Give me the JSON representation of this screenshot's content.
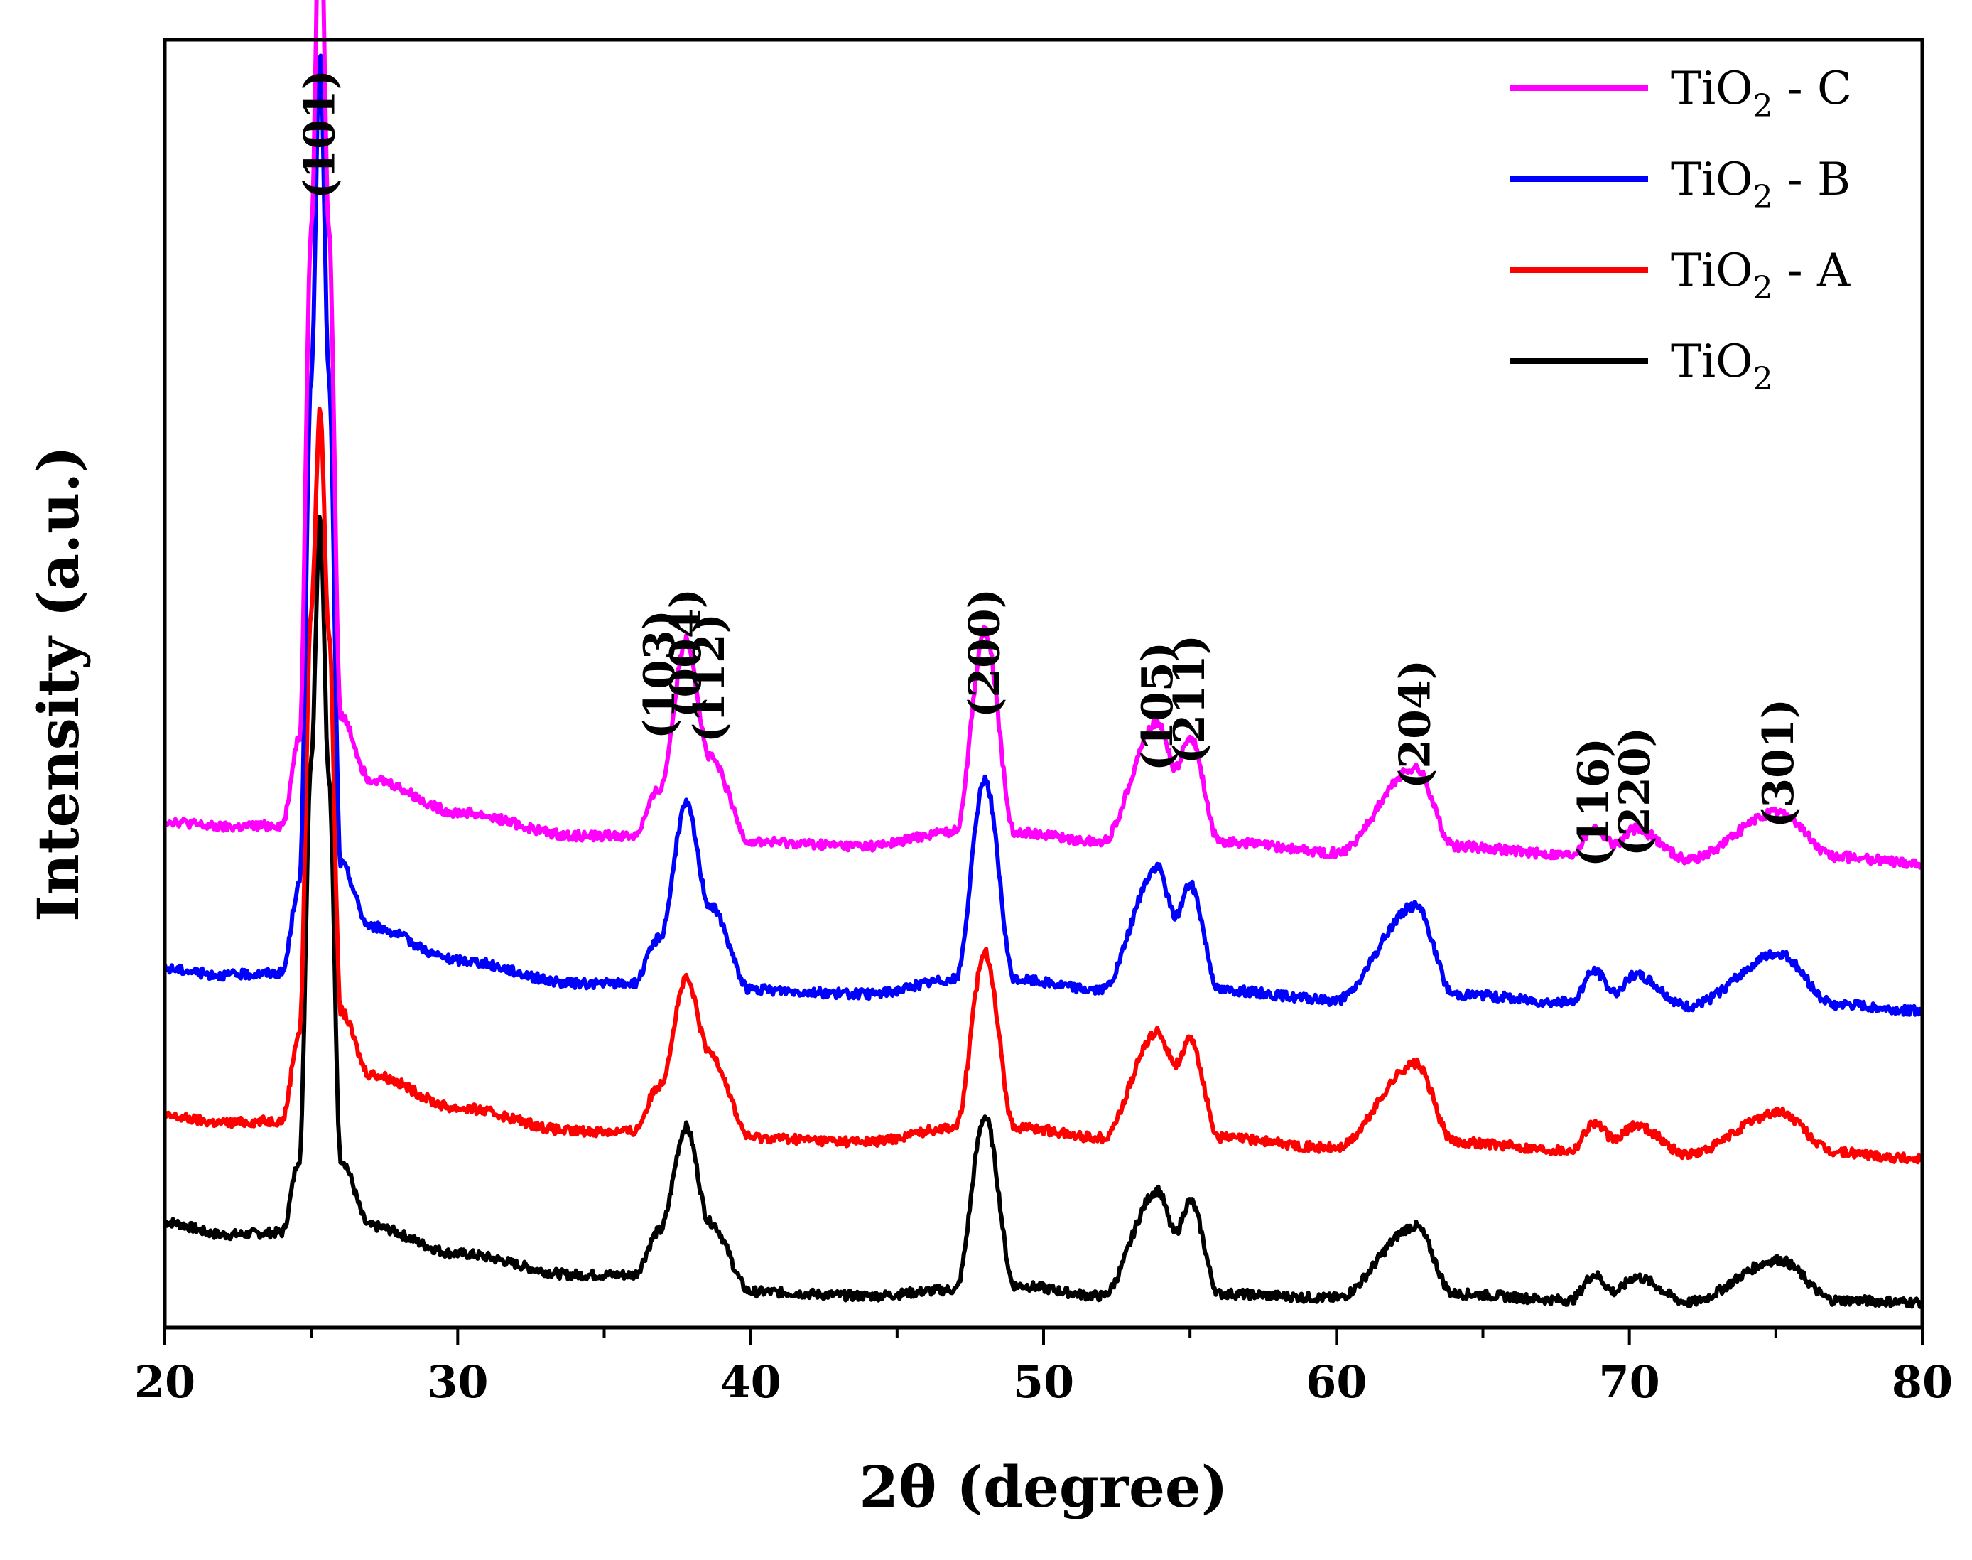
{
  "chart_data": {
    "type": "line",
    "title": "",
    "xlabel": "2θ (degree)",
    "ylabel": "Intensity (a.u.)",
    "xlim": [
      20,
      80
    ],
    "xticks": [
      20,
      30,
      40,
      50,
      60,
      70,
      80
    ],
    "yticks_shown": false,
    "legend_position": "top-right",
    "peaks": [
      {
        "label": "(101)",
        "x": 25.3
      },
      {
        "label": "(103)",
        "x": 36.9
      },
      {
        "label": "(004)",
        "x": 37.8
      },
      {
        "label": "(112)",
        "x": 38.6
      },
      {
        "label": "(200)",
        "x": 48.0
      },
      {
        "label": "(105)",
        "x": 53.9
      },
      {
        "label": "(211)",
        "x": 55.0
      },
      {
        "label": "(204)",
        "x": 62.7
      },
      {
        "label": "(116)",
        "x": 68.8
      },
      {
        "label": "(220)",
        "x": 70.2
      },
      {
        "label": "(301)",
        "x": 75.1
      }
    ],
    "series": [
      {
        "name": "TiO2 - C",
        "legend_main": "TiO",
        "legend_sub": "2",
        "legend_suffix": " - C",
        "color": "#ff00ff",
        "offset": 2.1,
        "x": [
          20,
          22,
          24,
          24.6,
          25.0,
          25.3,
          25.6,
          26.0,
          27,
          30,
          34,
          36,
          36.9,
          37.8,
          38.6,
          40,
          44,
          47,
          48.0,
          49,
          52,
          53.9,
          54.5,
          55.0,
          56,
          60,
          62.7,
          64,
          68,
          68.8,
          69.5,
          70.2,
          72,
          75.1,
          77,
          80
        ],
        "y": [
          0.2,
          0.17,
          0.18,
          0.6,
          3.0,
          4.68,
          3.0,
          0.7,
          0.4,
          0.24,
          0.13,
          0.13,
          0.35,
          1.06,
          0.5,
          0.1,
          0.08,
          0.15,
          1.1,
          0.15,
          0.1,
          0.67,
          0.45,
          0.6,
          0.1,
          0.05,
          0.45,
          0.08,
          0.04,
          0.17,
          0.09,
          0.16,
          0.02,
          0.24,
          0.03,
          0.0
        ]
      },
      {
        "name": "TiO2 - B",
        "legend_main": "TiO",
        "legend_sub": "2",
        "legend_suffix": " - B",
        "color": "#0000ff",
        "offset": 1.4,
        "x": [
          20,
          22,
          24,
          24.6,
          25.0,
          25.3,
          25.6,
          26.0,
          27,
          30,
          34,
          36,
          36.9,
          37.8,
          38.6,
          40,
          44,
          47,
          48.0,
          49,
          52,
          53.9,
          54.5,
          55.0,
          56,
          60,
          62.7,
          64,
          68,
          68.8,
          69.5,
          70.2,
          72,
          75.1,
          77,
          80
        ],
        "y": [
          0.2,
          0.17,
          0.18,
          0.6,
          3.0,
          4.55,
          3.0,
          0.7,
          0.4,
          0.24,
          0.13,
          0.13,
          0.35,
          0.98,
          0.5,
          0.1,
          0.08,
          0.15,
          1.1,
          0.15,
          0.1,
          0.68,
          0.45,
          0.6,
          0.1,
          0.05,
          0.5,
          0.08,
          0.04,
          0.19,
          0.09,
          0.17,
          0.02,
          0.27,
          0.03,
          0.0
        ]
      },
      {
        "name": "TiO2 - A",
        "legend_main": "TiO",
        "legend_sub": "2",
        "legend_suffix": " - A",
        "color": "#ff0000",
        "offset": 0.7,
        "x": [
          20,
          22,
          24,
          24.6,
          25.0,
          25.3,
          25.6,
          26.0,
          27,
          30,
          34,
          36,
          36.9,
          37.8,
          38.6,
          40,
          44,
          47,
          48.0,
          49,
          52,
          53.9,
          54.5,
          55.0,
          56,
          60,
          62.7,
          64,
          68,
          68.8,
          69.5,
          70.2,
          72,
          75.1,
          77,
          80
        ],
        "y": [
          0.2,
          0.17,
          0.18,
          0.6,
          2.6,
          3.55,
          2.5,
          0.7,
          0.4,
          0.24,
          0.13,
          0.13,
          0.35,
          0.85,
          0.5,
          0.1,
          0.08,
          0.15,
          0.98,
          0.15,
          0.1,
          0.6,
          0.45,
          0.56,
          0.1,
          0.05,
          0.45,
          0.08,
          0.04,
          0.17,
          0.09,
          0.16,
          0.02,
          0.22,
          0.03,
          0.0
        ]
      },
      {
        "name": "TiO2",
        "legend_main": "TiO",
        "legend_sub": "2",
        "legend_suffix": "",
        "color": "#000000",
        "offset": 0.0,
        "x": [
          20,
          22,
          24,
          24.6,
          25.0,
          25.3,
          25.6,
          26.0,
          27,
          30,
          34,
          36,
          36.9,
          37.8,
          38.6,
          40,
          44,
          47,
          48.0,
          49,
          52,
          53.9,
          54.5,
          55.0,
          56,
          60,
          62.7,
          64,
          68,
          68.8,
          69.5,
          70.2,
          72,
          75.1,
          77,
          80
        ],
        "y": [
          0.4,
          0.34,
          0.35,
          0.7,
          2.6,
          3.75,
          2.5,
          0.7,
          0.38,
          0.25,
          0.15,
          0.15,
          0.36,
          0.85,
          0.4,
          0.07,
          0.05,
          0.08,
          0.9,
          0.1,
          0.05,
          0.55,
          0.35,
          0.5,
          0.06,
          0.04,
          0.38,
          0.06,
          0.03,
          0.15,
          0.07,
          0.14,
          0.02,
          0.22,
          0.03,
          0.02
        ]
      }
    ]
  }
}
